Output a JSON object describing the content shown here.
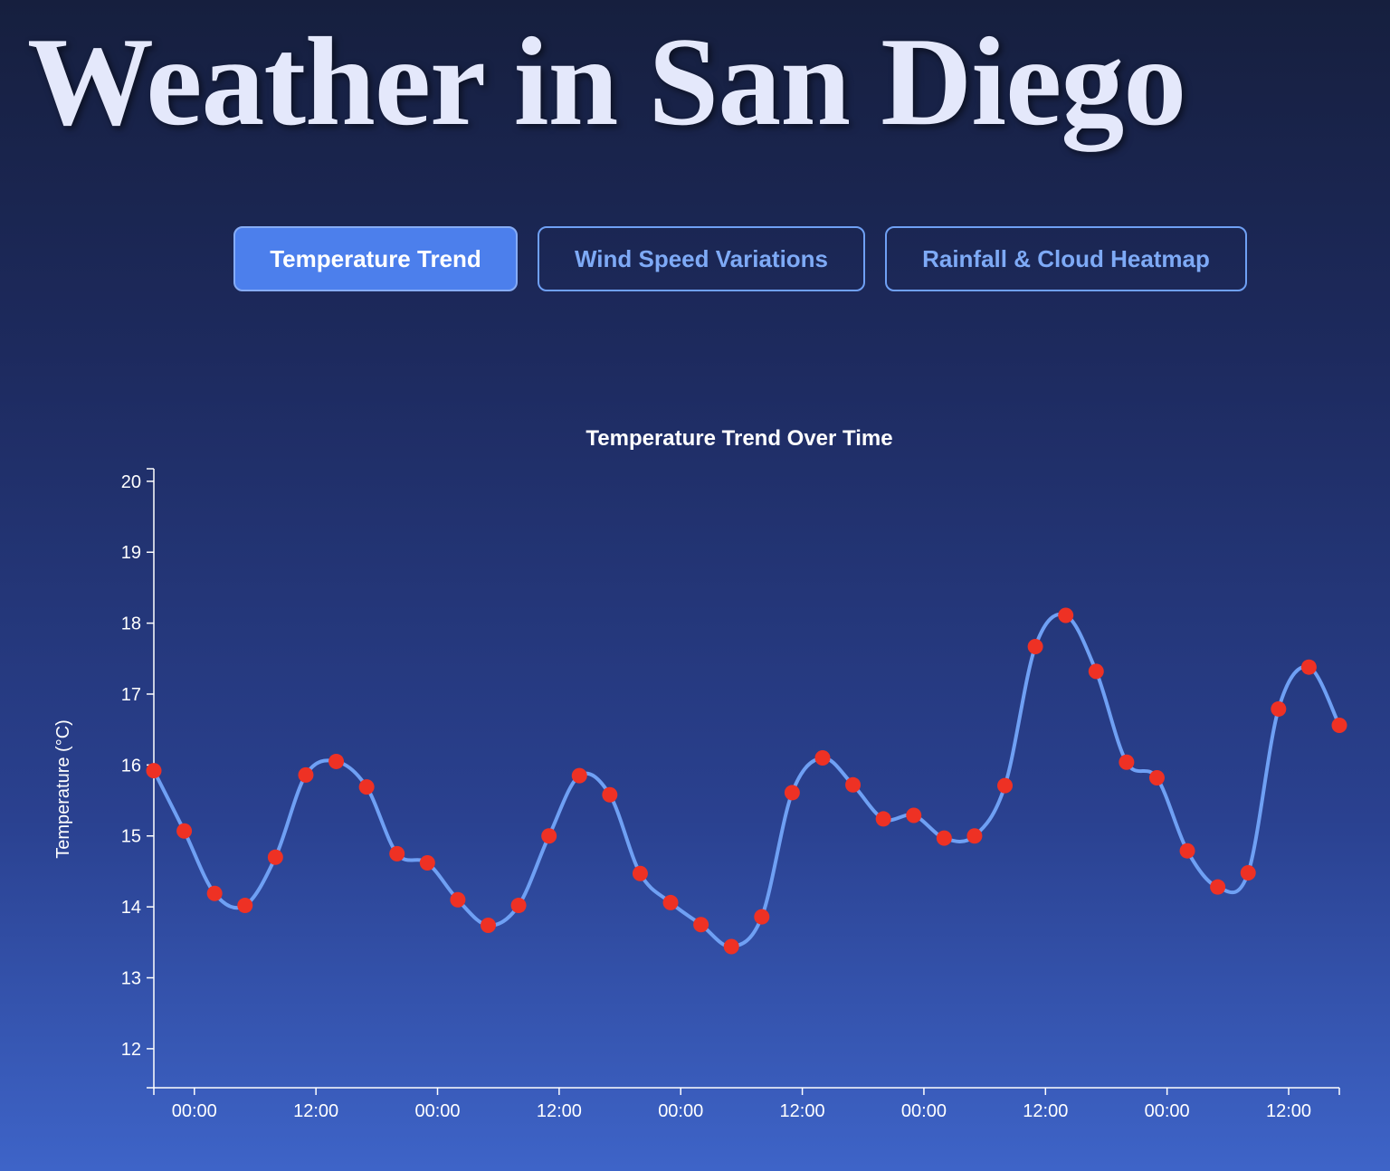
{
  "page": {
    "title": "Weather in San Diego"
  },
  "tabs": [
    {
      "label": "Temperature Trend",
      "active": true
    },
    {
      "label": "Wind Speed Variations",
      "active": false
    },
    {
      "label": "Rainfall & Cloud Heatmap",
      "active": false
    }
  ],
  "colors": {
    "line": "#6fa0f4",
    "point": "#ee3124",
    "active_tab": "#4c7fec",
    "tab_border": "#6fa0f4"
  },
  "chart_data": {
    "type": "line",
    "title": "Temperature Trend Over Time",
    "xlabel": "",
    "ylabel": "Temperature (°C)",
    "ylim": [
      11.45,
      20.1
    ],
    "yticks": [
      12,
      13,
      14,
      15,
      16,
      17,
      18,
      19,
      20
    ],
    "xticks": [
      "00:00",
      "12:00",
      "00:00",
      "12:00",
      "00:00",
      "12:00",
      "00:00",
      "12:00",
      "00:00",
      "12:00"
    ],
    "grid": false,
    "point_interval_hours": 3,
    "first_point_hours_before_first_tick": 4,
    "series": [
      {
        "name": "",
        "values": [
          15.92,
          15.07,
          14.19,
          14.02,
          14.7,
          15.86,
          16.05,
          15.69,
          14.75,
          14.62,
          14.1,
          13.74,
          14.02,
          15.0,
          15.85,
          15.58,
          14.47,
          14.06,
          13.75,
          13.44,
          13.86,
          15.61,
          16.1,
          15.72,
          15.24,
          15.29,
          14.97,
          15.0,
          15.71,
          17.67,
          18.11,
          17.32,
          16.04,
          15.82,
          14.79,
          14.28,
          14.48,
          16.79,
          17.38,
          16.56
        ]
      }
    ]
  }
}
